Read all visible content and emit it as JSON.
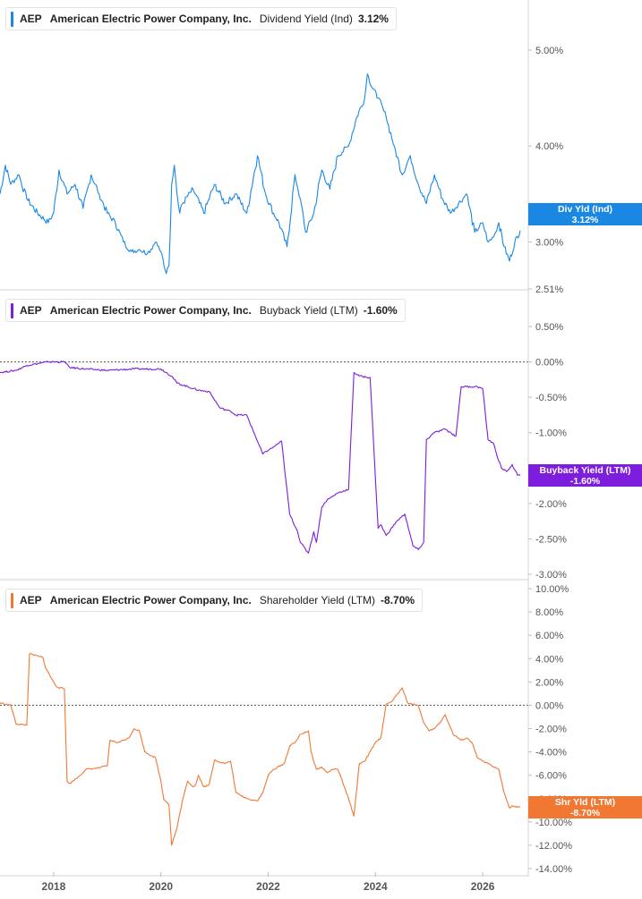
{
  "ticker": "AEP",
  "company": "American Electric Power Company, Inc.",
  "colors": {
    "dividend": "#1a88e3",
    "buyback": "#7d1ddd",
    "shareholder": "#f07833",
    "axis": "#d3d3d3",
    "text": "#555555"
  },
  "chart_data": [
    {
      "type": "line",
      "legend": {
        "metric": "Dividend Yield (Ind)",
        "value": "3.12%"
      },
      "badge": {
        "label": "Div Yld (Ind)",
        "value": "3.12%"
      },
      "ylim": [
        2.51,
        5.5
      ],
      "yticks": [
        5.0,
        4.0,
        3.0,
        2.51
      ],
      "ytick_labels": [
        "5.00%",
        "4.00%",
        "3.00%",
        "2.51%"
      ],
      "zero_line": false,
      "series": [
        {
          "x": [
            2017.0,
            2017.1,
            2017.2,
            2017.35,
            2017.5,
            2017.7,
            2017.9,
            2018.0,
            2018.1,
            2018.25,
            2018.4,
            2018.55,
            2018.7,
            2018.85,
            2019.0,
            2019.15,
            2019.3,
            2019.45,
            2019.6,
            2019.75,
            2019.9,
            2020.0,
            2020.1,
            2020.15,
            2020.2,
            2020.25,
            2020.3,
            2020.35,
            2020.4,
            2020.6,
            2020.8,
            2021.0,
            2021.2,
            2021.4,
            2021.6,
            2021.8,
            2021.95,
            2022.1,
            2022.2,
            2022.35,
            2022.5,
            2022.6,
            2022.7,
            2022.85,
            2023.0,
            2023.15,
            2023.3,
            2023.5,
            2023.65,
            2023.8,
            2023.85,
            2023.95,
            2024.05,
            2024.2,
            2024.35,
            2024.5,
            2024.65,
            2024.8,
            2024.95,
            2025.1,
            2025.25,
            2025.4,
            2025.55,
            2025.7,
            2025.85,
            2026.0,
            2026.1,
            2026.2,
            2026.3,
            2026.4,
            2026.5,
            2026.6,
            2026.7
          ],
          "y": [
            3.5,
            3.8,
            3.6,
            3.7,
            3.45,
            3.3,
            3.2,
            3.3,
            3.75,
            3.5,
            3.6,
            3.35,
            3.7,
            3.5,
            3.3,
            3.2,
            3.0,
            2.9,
            2.92,
            2.88,
            3.0,
            2.9,
            2.67,
            2.75,
            3.6,
            3.8,
            3.5,
            3.3,
            3.4,
            3.55,
            3.3,
            3.6,
            3.4,
            3.5,
            3.3,
            3.9,
            3.5,
            3.3,
            3.2,
            2.95,
            3.7,
            3.45,
            3.1,
            3.3,
            3.75,
            3.55,
            3.9,
            4.0,
            4.3,
            4.5,
            4.75,
            4.6,
            4.5,
            4.3,
            4.0,
            3.7,
            3.9,
            3.6,
            3.4,
            3.7,
            3.45,
            3.3,
            3.4,
            3.5,
            3.1,
            3.2,
            3.0,
            3.05,
            3.2,
            2.95,
            2.8,
            3.0,
            3.12
          ]
        }
      ]
    },
    {
      "type": "line",
      "legend": {
        "metric": "Buyback Yield (LTM)",
        "value": "-1.60%"
      },
      "badge": {
        "label": "Buyback Yield (LTM)",
        "value": "-1.60%"
      },
      "ylim": [
        -3.0,
        0.75
      ],
      "yticks": [
        0.5,
        0.0,
        -0.5,
        -1.0,
        -1.5,
        -2.0,
        -2.5,
        -3.0
      ],
      "ytick_labels": [
        "0.50%",
        "0.00%",
        "-0.50%",
        "-1.00%",
        "-1.50%",
        "-2.00%",
        "-2.50%",
        "-3.00%"
      ],
      "zero_line": true,
      "series": [
        {
          "x": [
            2017.0,
            2017.3,
            2017.5,
            2017.9,
            2018.2,
            2018.3,
            2018.6,
            2019.0,
            2019.5,
            2020.0,
            2020.2,
            2020.3,
            2020.5,
            2020.7,
            2020.9,
            2021.1,
            2021.3,
            2021.4,
            2021.6,
            2021.9,
            2022.0,
            2022.1,
            2022.25,
            2022.4,
            2022.55,
            2022.6,
            2022.75,
            2022.85,
            2022.9,
            2023.0,
            2023.1,
            2023.3,
            2023.5,
            2023.6,
            2023.7,
            2023.9,
            2024.05,
            2024.1,
            2024.2,
            2024.4,
            2024.55,
            2024.6,
            2024.7,
            2024.8,
            2024.9,
            2024.95,
            2025.1,
            2025.3,
            2025.5,
            2025.6,
            2025.7,
            2025.9,
            2026.0,
            2026.1,
            2026.2,
            2026.3,
            2026.35,
            2026.45,
            2026.55,
            2026.65,
            2026.7
          ],
          "y": [
            -0.15,
            -0.12,
            -0.05,
            0.0,
            0.0,
            -0.08,
            -0.1,
            -0.12,
            -0.1,
            -0.1,
            -0.2,
            -0.3,
            -0.35,
            -0.4,
            -0.42,
            -0.65,
            -0.7,
            -0.75,
            -0.75,
            -1.3,
            -1.25,
            -1.2,
            -1.12,
            -2.15,
            -2.4,
            -2.55,
            -2.7,
            -2.4,
            -2.55,
            -2.05,
            -1.95,
            -1.85,
            -1.8,
            -0.15,
            -0.2,
            -0.22,
            -2.35,
            -2.3,
            -2.45,
            -2.25,
            -2.15,
            -2.3,
            -2.6,
            -2.65,
            -2.55,
            -1.1,
            -1.0,
            -0.95,
            -1.05,
            -0.35,
            -0.35,
            -0.35,
            -0.38,
            -1.1,
            -1.15,
            -1.4,
            -1.5,
            -1.55,
            -1.45,
            -1.6,
            -1.6
          ]
        }
      ]
    },
    {
      "type": "line",
      "legend": {
        "metric": "Shareholder Yield (LTM)",
        "value": "-8.70%"
      },
      "badge": {
        "label": "Shr Yld (LTM)",
        "value": "-8.70%"
      },
      "ylim": [
        -14.0,
        10.0
      ],
      "yticks": [
        10.0,
        8.0,
        6.0,
        4.0,
        2.0,
        0.0,
        -2.0,
        -4.0,
        -6.0,
        -8.0,
        -10.0,
        -12.0,
        -14.0
      ],
      "ytick_labels": [
        "10.00%",
        "8.00%",
        "6.00%",
        "4.00%",
        "2.00%",
        "0.00%",
        "-2.00%",
        "-4.00%",
        "-6.00%",
        "-8.00%",
        "-10.00%",
        "-12.00%",
        "-14.00%"
      ],
      "zero_line": true,
      "series": [
        {
          "x": [
            2017.0,
            2017.2,
            2017.3,
            2017.5,
            2017.55,
            2017.8,
            2017.85,
            2018.0,
            2018.05,
            2018.2,
            2018.25,
            2018.3,
            2018.5,
            2018.6,
            2018.8,
            2019.0,
            2019.05,
            2019.2,
            2019.4,
            2019.5,
            2019.6,
            2019.7,
            2019.9,
            2020.0,
            2020.05,
            2020.15,
            2020.2,
            2020.3,
            2020.4,
            2020.5,
            2020.6,
            2020.65,
            2020.7,
            2020.8,
            2020.9,
            2021.0,
            2021.2,
            2021.3,
            2021.4,
            2021.6,
            2021.8,
            2021.9,
            2022.0,
            2022.1,
            2022.3,
            2022.4,
            2022.5,
            2022.6,
            2022.75,
            2022.8,
            2022.9,
            2023.0,
            2023.1,
            2023.2,
            2023.3,
            2023.5,
            2023.6,
            2023.7,
            2023.8,
            2024.0,
            2024.1,
            2024.2,
            2024.3,
            2024.5,
            2024.6,
            2024.8,
            2024.9,
            2025.0,
            2025.1,
            2025.2,
            2025.3,
            2025.45,
            2025.6,
            2025.7,
            2025.8,
            2025.9,
            2026.0,
            2026.1,
            2026.2,
            2026.3,
            2026.4,
            2026.5,
            2026.55,
            2026.6,
            2026.7
          ],
          "y": [
            0.2,
            0.0,
            -1.6,
            -1.7,
            4.4,
            4.1,
            3.2,
            2.0,
            1.6,
            1.4,
            -6.5,
            -6.7,
            -6.0,
            -5.5,
            -5.4,
            -5.2,
            -3.0,
            -3.2,
            -2.8,
            -2.0,
            -2.2,
            -4.0,
            -4.5,
            -6.5,
            -8.0,
            -8.5,
            -12.0,
            -10.5,
            -8.2,
            -6.5,
            -7.0,
            -6.8,
            -6.0,
            -7.0,
            -6.8,
            -4.7,
            -5.0,
            -4.8,
            -7.5,
            -8.0,
            -8.2,
            -7.5,
            -6.0,
            -5.5,
            -5.0,
            -3.5,
            -3.2,
            -2.5,
            -2.2,
            -4.0,
            -5.5,
            -5.3,
            -5.8,
            -5.5,
            -5.5,
            -8.0,
            -9.5,
            -5.0,
            -4.8,
            -3.2,
            -2.8,
            0.1,
            0.3,
            1.5,
            0.2,
            0.0,
            -1.5,
            -2.2,
            -2.0,
            -1.5,
            -0.8,
            -2.5,
            -3.0,
            -2.8,
            -3.2,
            -4.5,
            -4.8,
            -5.0,
            -5.3,
            -5.5,
            -7.5,
            -8.8,
            -8.6,
            -8.7,
            -8.7
          ]
        }
      ]
    }
  ],
  "xaxis": {
    "xlim": [
      2017.0,
      2026.85
    ],
    "ticks": [
      2018,
      2020,
      2022,
      2024,
      2026
    ],
    "tick_labels": [
      "2018",
      "2020",
      "2022",
      "2024",
      "2026"
    ]
  }
}
